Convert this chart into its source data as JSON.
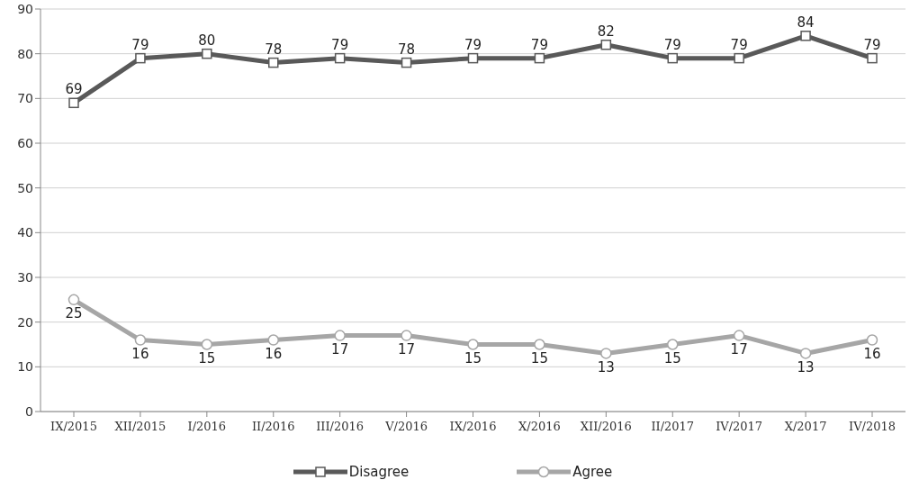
{
  "chart_data": {
    "type": "line",
    "categories": [
      "IX/2015",
      "XII/2015",
      "I/2016",
      "II/2016",
      "III/2016",
      "V/2016",
      "IX/2016",
      "X/2016",
      "XII/2016",
      "II/2017",
      "IV/2017",
      "X/2017",
      "IV/2018"
    ],
    "series": [
      {
        "name": "Disagree",
        "color": "#595959",
        "marker": "square",
        "values": [
          69,
          79,
          80,
          78,
          79,
          78,
          79,
          79,
          82,
          79,
          79,
          84,
          79
        ]
      },
      {
        "name": "Agree",
        "color": "#a6a6a6",
        "marker": "circle",
        "values": [
          25,
          16,
          15,
          16,
          17,
          17,
          15,
          15,
          13,
          15,
          17,
          13,
          16
        ]
      }
    ],
    "ylim": [
      0,
      90
    ],
    "yticks": [
      0,
      10,
      20,
      30,
      40,
      50,
      60,
      70,
      80,
      90
    ],
    "grid": "y",
    "legend": "bottom",
    "data_labels": true
  }
}
